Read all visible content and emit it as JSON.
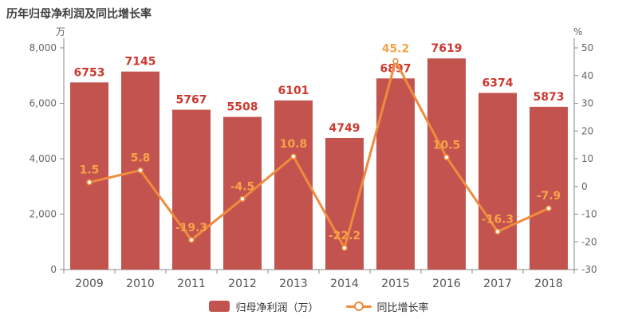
{
  "title": "历年归母净利润及同比增长率",
  "colors": {
    "background": "#ffffff",
    "title": "#3f3f3f",
    "bar": "#c3534e",
    "bar_label": "#cc3a30",
    "line": "#ef8b3d",
    "line_label": "#f7a349",
    "marker_fill": "#ffffff",
    "axis_line": "#888888",
    "tick_label": "#666666",
    "year_label": "#555555",
    "legend_text": "#333333"
  },
  "left_axis": {
    "unit": "万",
    "tick_labels": [
      "8,000",
      "6,000",
      "4,000",
      "2,000",
      "0"
    ],
    "max": 8000,
    "min": 0
  },
  "right_axis": {
    "unit": "%",
    "tick_labels": [
      "50",
      "40",
      "30",
      "20",
      "10",
      "0",
      "-10",
      "-20",
      "-30"
    ],
    "max": 50,
    "min": -30
  },
  "legend": {
    "bar_label": "归母净利润（万）",
    "line_label": "同比增长率"
  },
  "chart_data": {
    "type": "bar",
    "title": "历年归母净利润及同比增长率",
    "categories": [
      "2009",
      "2010",
      "2011",
      "2012",
      "2013",
      "2014",
      "2015",
      "2016",
      "2017",
      "2018"
    ],
    "series": [
      {
        "name": "归母净利润（万）",
        "type": "bar",
        "axis": "left",
        "values": [
          6753,
          7145,
          5767,
          5508,
          6101,
          4749,
          6897,
          7619,
          6374,
          5873
        ]
      },
      {
        "name": "同比增长率",
        "type": "line",
        "axis": "right",
        "values": [
          1.5,
          5.8,
          -19.3,
          -4.5,
          10.8,
          -22.2,
          45.2,
          10.5,
          -16.3,
          -7.9
        ]
      }
    ],
    "xlabel": "",
    "ylabel_left": "万",
    "ylabel_right": "%",
    "left_ylim": [
      0,
      8000
    ],
    "right_ylim": [
      -30,
      50
    ],
    "grid": false,
    "legend_position": "bottom"
  }
}
